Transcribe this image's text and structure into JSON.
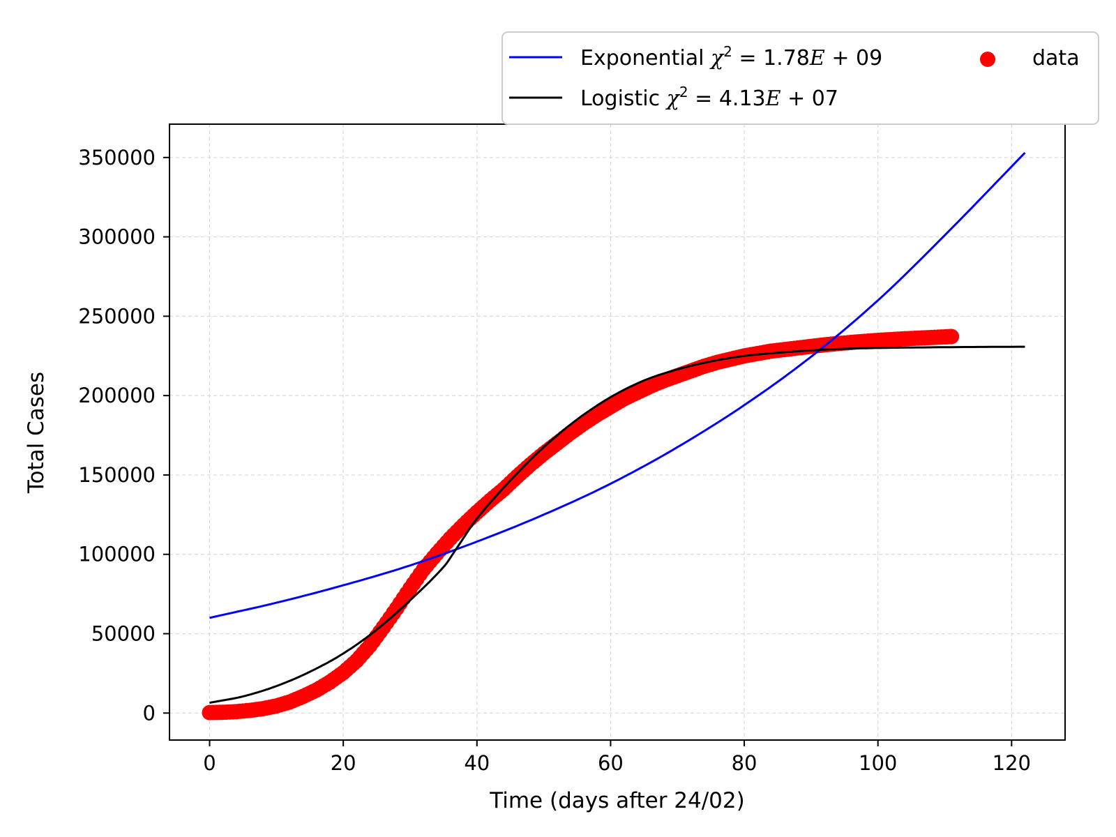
{
  "chart_data": {
    "type": "line+scatter",
    "xlabel": "Time (days after 24/02)",
    "ylabel": "Total Cases",
    "xlim": [
      -6,
      128
    ],
    "ylim": [
      -17000,
      371000
    ],
    "xticks": [
      0,
      20,
      40,
      60,
      80,
      100,
      120
    ],
    "yticks": [
      0,
      50000,
      100000,
      150000,
      200000,
      250000,
      300000,
      350000
    ],
    "grid": true,
    "legend_position": "top-right, above plot",
    "legend": [
      {
        "key": "exp",
        "label": "Exponential χ² = 1.78E + 09",
        "label_prefix": "Exponential ",
        "chi_value": "1.78",
        "chi_exp": "09",
        "marker": "line",
        "color": "#0000ff"
      },
      {
        "key": "log",
        "label": "Logistic χ² = 4.13E + 07",
        "label_prefix": "Logistic ",
        "chi_value": "4.13",
        "chi_exp": "07",
        "marker": "line",
        "color": "#000000"
      },
      {
        "key": "data",
        "label": "data",
        "label_prefix": "data",
        "marker": "dot",
        "color": "#ff0000"
      }
    ],
    "series": [
      {
        "name": "Exponential",
        "kind": "line",
        "color": "#0000ff",
        "x": [
          0,
          10,
          20,
          30,
          40,
          50,
          60,
          70,
          80,
          90,
          100,
          110,
          122
        ],
        "y": [
          60000,
          69500,
          80500,
          93000,
          108000,
          125000,
          144500,
          167500,
          194000,
          224500,
          260000,
          301000,
          353000
        ]
      },
      {
        "name": "Logistic",
        "kind": "line",
        "color": "#000000",
        "x": [
          0,
          5,
          10,
          15,
          20,
          25,
          30,
          35,
          37,
          40,
          45,
          50,
          55,
          60,
          65,
          70,
          75,
          80,
          85,
          90,
          95,
          100,
          110,
          122
        ],
        "y": [
          6500,
          10500,
          17000,
          26000,
          37500,
          52500,
          71000,
          92000,
          104000,
          122500,
          146500,
          167500,
          185000,
          199000,
          209500,
          216500,
          221500,
          225000,
          227000,
          228500,
          229500,
          230000,
          230500,
          230800
        ]
      },
      {
        "name": "data",
        "kind": "scatter",
        "color": "#ff0000",
        "x": [
          0,
          2,
          4,
          6,
          8,
          10,
          12,
          14,
          16,
          18,
          20,
          22,
          24,
          26,
          28,
          30,
          32,
          34,
          36,
          38,
          40,
          42,
          44,
          46,
          48,
          50,
          52,
          54,
          56,
          58,
          60,
          62,
          64,
          66,
          68,
          70,
          72,
          74,
          76,
          78,
          80,
          82,
          84,
          86,
          88,
          90,
          92,
          94,
          96,
          98,
          100,
          102,
          104,
          106,
          108,
          110,
          111
        ],
        "y": [
          300,
          500,
          900,
          1700,
          2800,
          4500,
          7000,
          10500,
          14500,
          19500,
          25500,
          33000,
          42500,
          54000,
          66000,
          78500,
          90500,
          100500,
          110000,
          118500,
          126500,
          134000,
          141000,
          149000,
          156500,
          163500,
          170000,
          176500,
          182500,
          188000,
          193000,
          198000,
          202000,
          206000,
          209500,
          212500,
          215500,
          218500,
          221000,
          223000,
          225000,
          226500,
          228000,
          229000,
          230000,
          231000,
          232000,
          232800,
          233500,
          234200,
          234800,
          235300,
          235800,
          236200,
          236600,
          237000,
          237200
        ]
      }
    ]
  }
}
